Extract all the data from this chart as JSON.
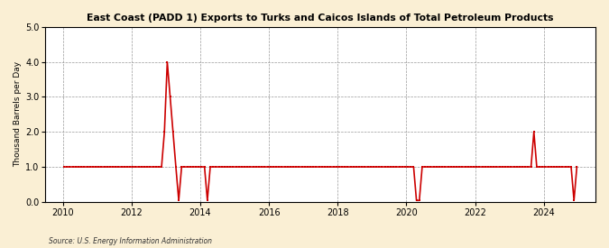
{
  "title": "East Coast (PADD 1) Exports to Turks and Caicos Islands of Total Petroleum Products",
  "ylabel": "Thousand Barrels per Day",
  "source": "Source: U.S. Energy Information Administration",
  "bg_color": "#faefd4",
  "plot_bg": "#ffffff",
  "line_color": "#cc0000",
  "marker_color": "#cc0000",
  "ylim": [
    0.0,
    5.0
  ],
  "yticks": [
    0.0,
    1.0,
    2.0,
    3.0,
    4.0,
    5.0
  ],
  "xticks": [
    2010,
    2012,
    2014,
    2016,
    2018,
    2020,
    2022,
    2024
  ],
  "xlim": [
    2009.5,
    2025.5
  ],
  "data": {
    "2010-01": 1,
    "2010-02": 1,
    "2010-03": 1,
    "2010-04": 1,
    "2010-05": 1,
    "2010-06": 1,
    "2010-07": 1,
    "2010-08": 1,
    "2010-09": 1,
    "2010-10": 1,
    "2010-11": 1,
    "2010-12": 1,
    "2011-01": 1,
    "2011-02": 1,
    "2011-03": 1,
    "2011-04": 1,
    "2011-05": 1,
    "2011-06": 1,
    "2011-07": 1,
    "2011-08": 1,
    "2011-09": 1,
    "2011-10": 1,
    "2011-11": 1,
    "2011-12": 1,
    "2012-01": 1,
    "2012-02": 1,
    "2012-03": 1,
    "2012-04": 1,
    "2012-05": 1,
    "2012-06": 1,
    "2012-07": 1,
    "2012-08": 1,
    "2012-09": 1,
    "2012-10": 1,
    "2012-11": 1,
    "2012-12": 2,
    "2013-01": 4,
    "2013-02": 3,
    "2013-03": 2,
    "2013-04": 1,
    "2013-05": 0.04,
    "2013-06": 1,
    "2013-07": 1,
    "2013-08": 1,
    "2013-09": 1,
    "2013-10": 1,
    "2013-11": 1,
    "2013-12": 1,
    "2014-01": 1,
    "2014-02": 1,
    "2014-03": 0.04,
    "2014-04": 1,
    "2014-05": 1,
    "2014-06": 1,
    "2014-07": 1,
    "2014-08": 1,
    "2014-09": 1,
    "2014-10": 1,
    "2014-11": 1,
    "2014-12": 1,
    "2015-01": 1,
    "2015-02": 1,
    "2015-03": 1,
    "2015-04": 1,
    "2015-05": 1,
    "2015-06": 1,
    "2015-07": 1,
    "2015-08": 1,
    "2015-09": 1,
    "2015-10": 1,
    "2015-11": 1,
    "2015-12": 1,
    "2016-01": 1,
    "2016-02": 1,
    "2016-03": 1,
    "2016-04": 1,
    "2016-05": 1,
    "2016-06": 1,
    "2016-07": 1,
    "2016-08": 1,
    "2016-09": 1,
    "2016-10": 1,
    "2016-11": 1,
    "2016-12": 1,
    "2017-01": 1,
    "2017-02": 1,
    "2017-03": 1,
    "2017-04": 1,
    "2017-05": 1,
    "2017-06": 1,
    "2017-07": 1,
    "2017-08": 1,
    "2017-09": 1,
    "2017-10": 1,
    "2017-11": 1,
    "2017-12": 1,
    "2018-01": 1,
    "2018-02": 1,
    "2018-03": 1,
    "2018-04": 1,
    "2018-05": 1,
    "2018-06": 1,
    "2018-07": 1,
    "2018-08": 1,
    "2018-09": 1,
    "2018-10": 1,
    "2018-11": 1,
    "2018-12": 1,
    "2019-01": 1,
    "2019-02": 1,
    "2019-03": 1,
    "2019-04": 1,
    "2019-05": 1,
    "2019-06": 1,
    "2019-07": 1,
    "2019-08": 1,
    "2019-09": 1,
    "2019-10": 1,
    "2019-11": 1,
    "2019-12": 1,
    "2020-01": 1,
    "2020-02": 1,
    "2020-03": 1,
    "2020-04": 0.04,
    "2020-05": 0.04,
    "2020-06": 1,
    "2020-07": 1,
    "2020-08": 1,
    "2020-09": 1,
    "2020-10": 1,
    "2020-11": 1,
    "2020-12": 1,
    "2021-01": 1,
    "2021-02": 1,
    "2021-03": 1,
    "2021-04": 1,
    "2021-05": 1,
    "2021-06": 1,
    "2021-07": 1,
    "2021-08": 1,
    "2021-09": 1,
    "2021-10": 1,
    "2021-11": 1,
    "2021-12": 1,
    "2022-01": 1,
    "2022-02": 1,
    "2022-03": 1,
    "2022-04": 1,
    "2022-05": 1,
    "2022-06": 1,
    "2022-07": 1,
    "2022-08": 1,
    "2022-09": 1,
    "2022-10": 1,
    "2022-11": 1,
    "2022-12": 1,
    "2023-01": 1,
    "2023-02": 1,
    "2023-03": 1,
    "2023-04": 1,
    "2023-05": 1,
    "2023-06": 1,
    "2023-07": 1,
    "2023-08": 1,
    "2023-09": 2,
    "2023-10": 1,
    "2023-11": 1,
    "2023-12": 1,
    "2024-01": 1,
    "2024-02": 1,
    "2024-03": 1,
    "2024-04": 1,
    "2024-05": 1,
    "2024-06": 1,
    "2024-07": 1,
    "2024-08": 1,
    "2024-09": 1,
    "2024-10": 1,
    "2024-11": 0.04,
    "2024-12": 1
  }
}
